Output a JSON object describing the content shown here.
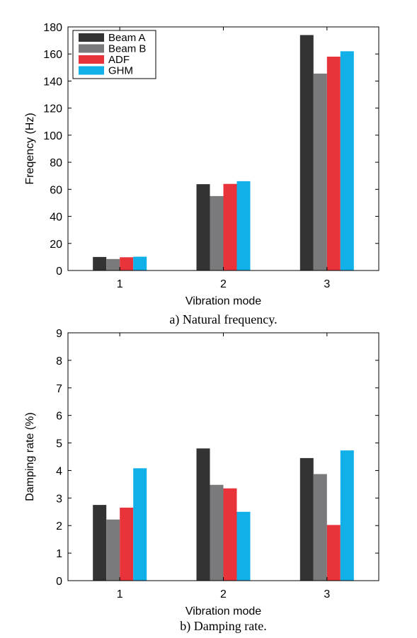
{
  "chart_data": [
    {
      "type": "bar",
      "caption": "a) Natural frequency.",
      "xlabel": "Vibration mode",
      "ylabel": "Freqency (Hz)",
      "categories": [
        "1",
        "2",
        "3"
      ],
      "ylim": [
        0,
        180
      ],
      "yticks": [
        0,
        20,
        40,
        60,
        80,
        100,
        120,
        140,
        160,
        180
      ],
      "legend_position": "top-left",
      "series": [
        {
          "name": "Beam A",
          "color": "#333333",
          "values": [
            10,
            63.8,
            174
          ]
        },
        {
          "name": "Beam B",
          "color": "#7a7a7c",
          "values": [
            8.5,
            55,
            145.5
          ]
        },
        {
          "name": "ADF",
          "color": "#e8333b",
          "values": [
            9.8,
            64,
            158
          ]
        },
        {
          "name": "GHM",
          "color": "#12b0e8",
          "values": [
            10.2,
            66,
            162
          ]
        }
      ]
    },
    {
      "type": "bar",
      "caption": "b) Damping rate.",
      "xlabel": "Vibration mode",
      "ylabel": "Damping rate (%)",
      "categories": [
        "1",
        "2",
        "3"
      ],
      "ylim": [
        0,
        9
      ],
      "yticks": [
        0,
        1,
        2,
        3,
        4,
        5,
        6,
        7,
        8,
        9
      ],
      "series": [
        {
          "name": "Beam A",
          "color": "#333333",
          "values": [
            2.75,
            4.8,
            4.45
          ]
        },
        {
          "name": "Beam B",
          "color": "#7a7a7c",
          "values": [
            2.22,
            3.48,
            3.87
          ]
        },
        {
          "name": "ADF",
          "color": "#e8333b",
          "values": [
            2.65,
            3.35,
            2.02
          ]
        },
        {
          "name": "GHM",
          "color": "#12b0e8",
          "values": [
            4.08,
            2.5,
            4.73
          ]
        }
      ]
    }
  ]
}
